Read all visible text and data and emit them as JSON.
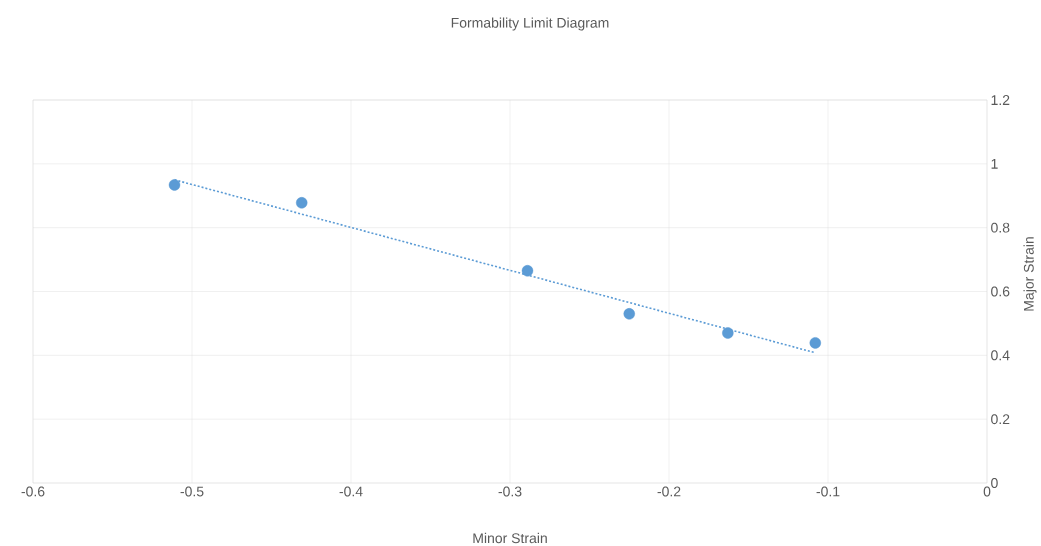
{
  "chart_data": {
    "type": "scatter",
    "title": "Formability Limit Diagram",
    "xlabel": "Minor Strain",
    "ylabel": "Major Strain",
    "series": [
      {
        "color": "#5b9bd5",
        "marker": "circle",
        "x": [
          -0.511,
          -0.431,
          -0.289,
          -0.225,
          -0.163,
          -0.108
        ],
        "values": [
          0.934,
          0.878,
          0.665,
          0.53,
          0.47,
          0.439
        ]
      },
      {
        "type": "line",
        "color": "#5b9bd5",
        "line_style": "dotted",
        "marker": "none",
        "x": [
          -0.511,
          -0.108
        ],
        "values": [
          0.95,
          0.408
        ]
      }
    ],
    "xlim": [
      -0.6,
      0
    ],
    "ylim": [
      0,
      1.2
    ],
    "xticks": [
      -0.6,
      -0.5,
      -0.4,
      -0.3,
      -0.2,
      -0.1,
      0
    ],
    "yticks": [
      0,
      0.2,
      0.4,
      0.6,
      0.8,
      1,
      1.2
    ],
    "grid": true
  }
}
